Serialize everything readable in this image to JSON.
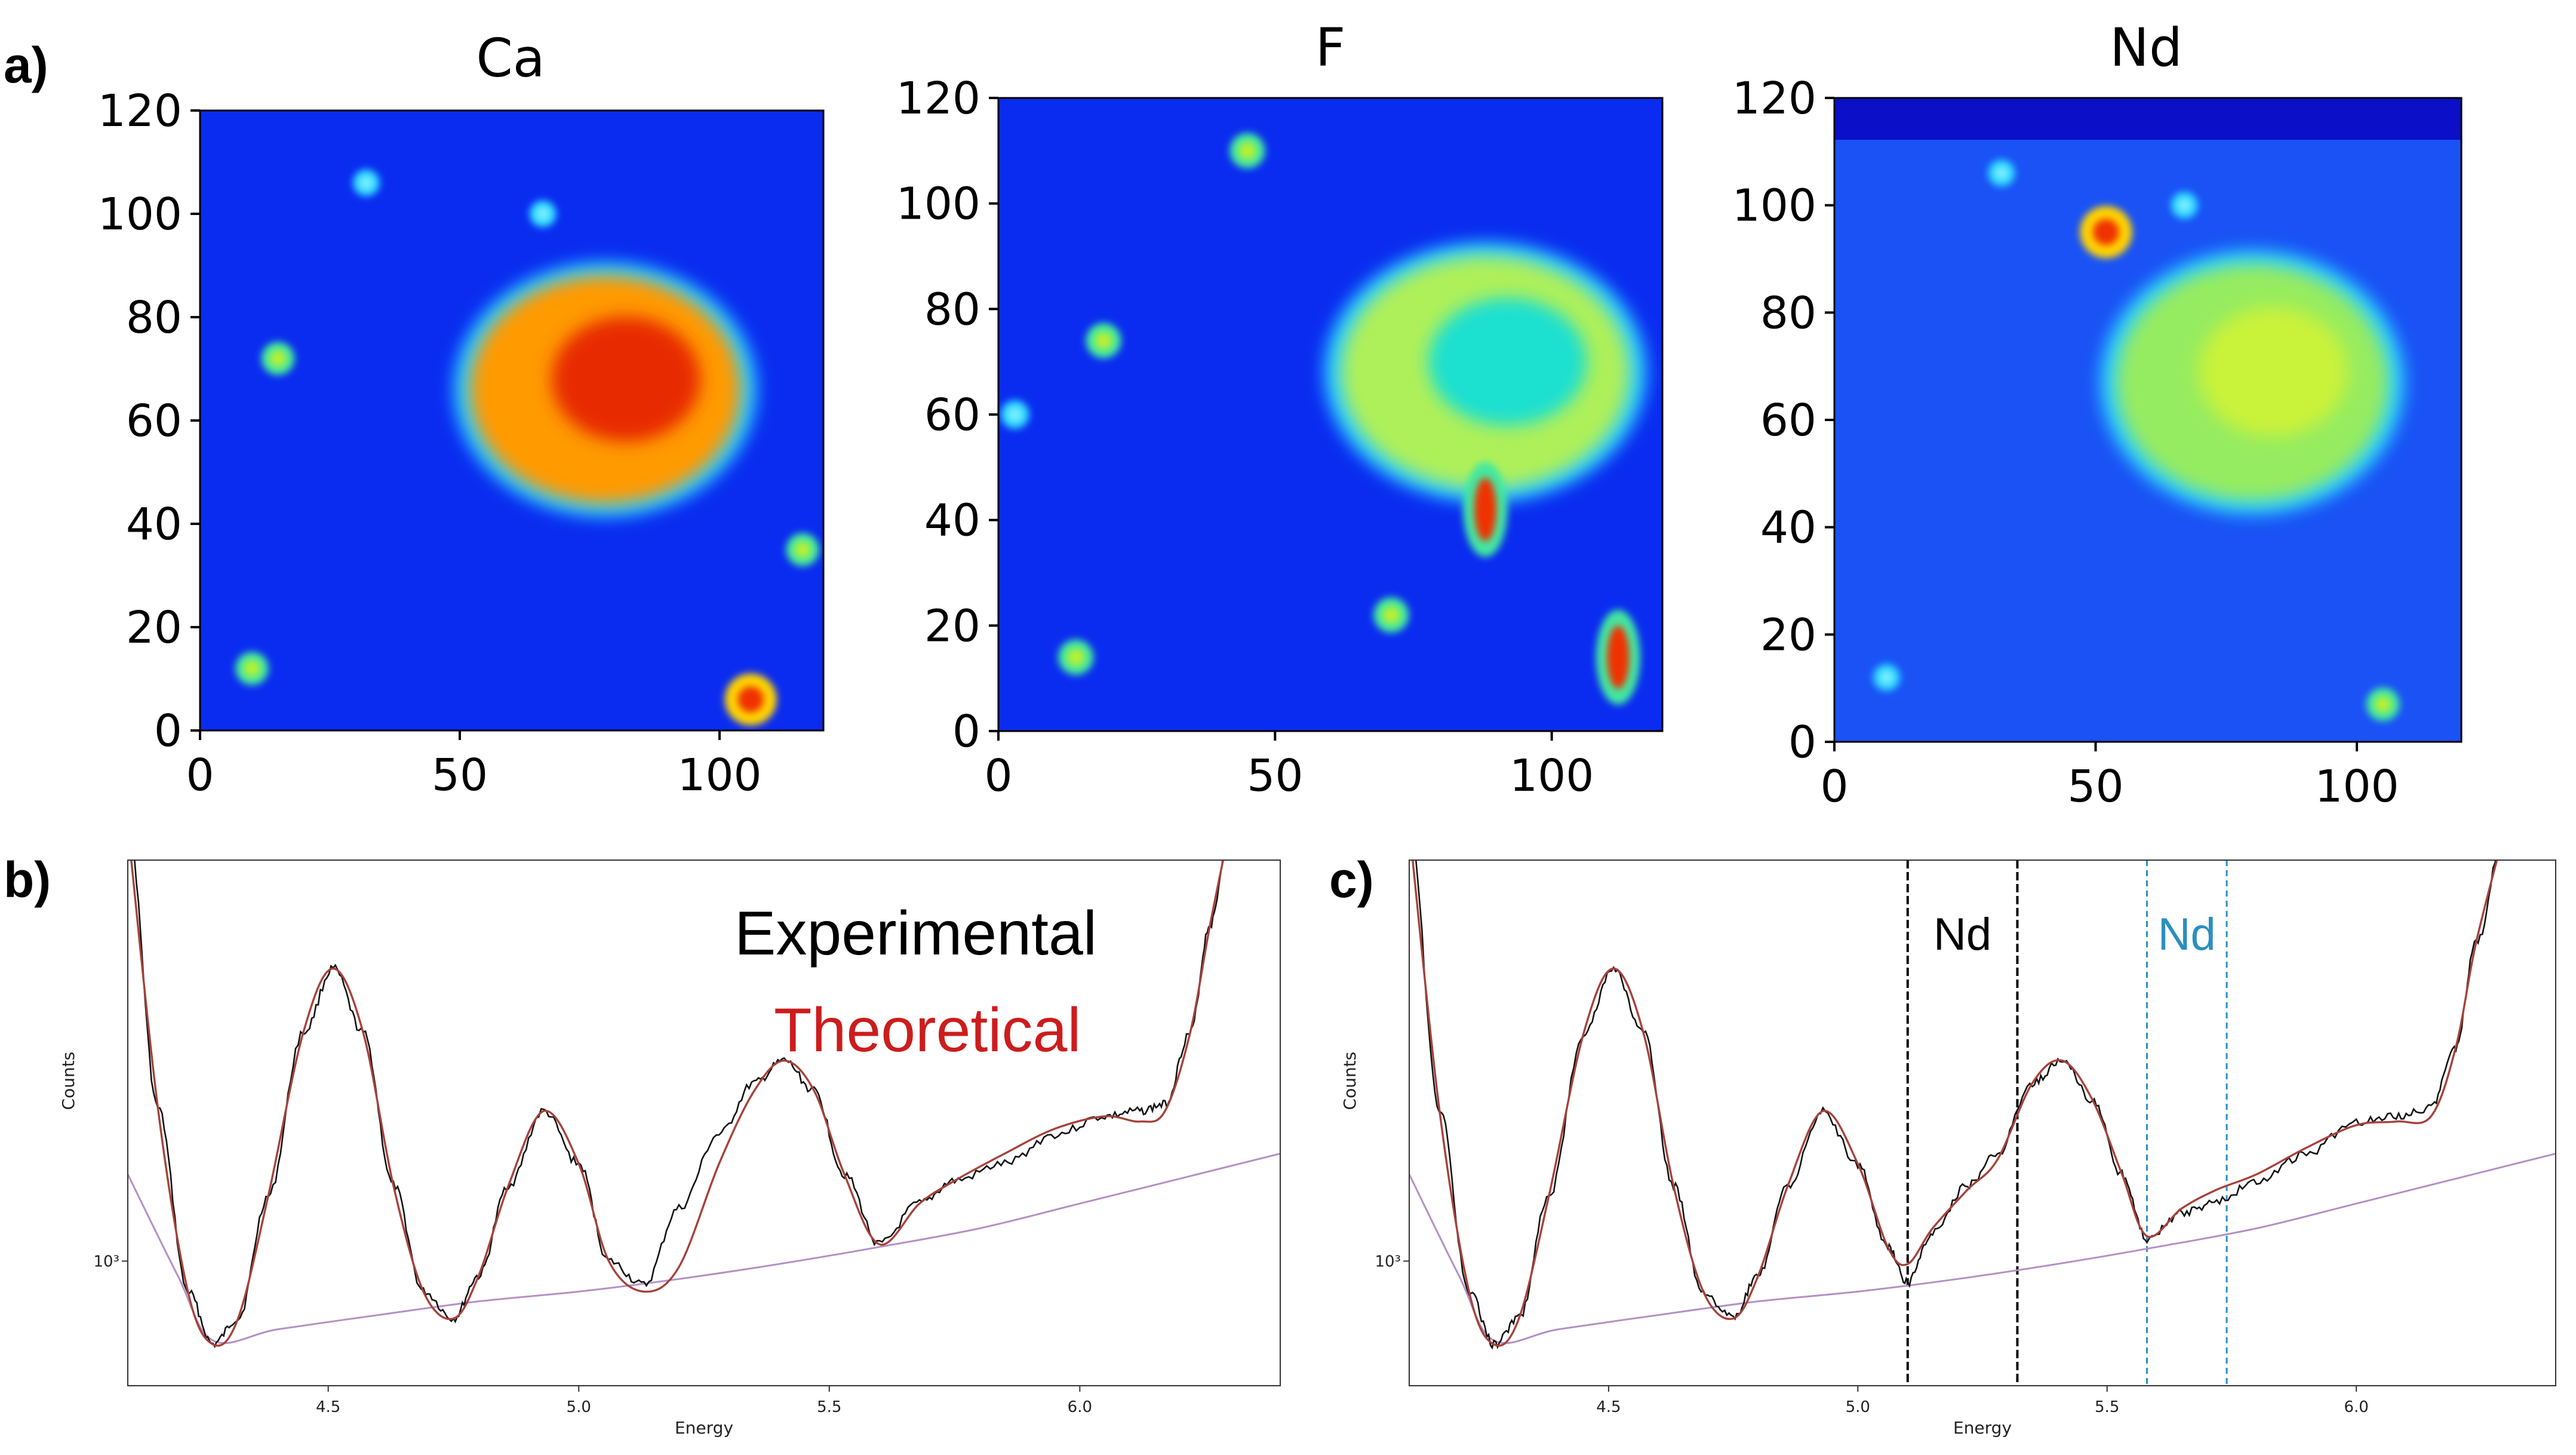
{
  "panel_labels": {
    "a": "a)",
    "b": "b)",
    "c": "c)"
  },
  "colors": {
    "experimental": "#111111",
    "theoretical": "#a5423a",
    "background_fit": "#b490c4",
    "nd_marker_black": "#000000",
    "nd_marker_blue": "#2b8fc0",
    "legend_theoretical": "#cc1d1d",
    "colormap": "jet"
  },
  "chart_data": [
    {
      "type": "heatmap",
      "title": "Ca",
      "colormap": "jet",
      "xlim": [
        0,
        120
      ],
      "ylim": [
        0,
        120
      ],
      "xticks": [
        "0",
        "50",
        "100"
      ],
      "yticks": [
        "0",
        "20",
        "40",
        "60",
        "80",
        "100",
        "120"
      ],
      "features": [
        {
          "kind": "hotspot",
          "x": 78,
          "y": 66,
          "intensity": "high"
        },
        {
          "kind": "spot",
          "x": 106,
          "y": 6,
          "intensity": "high"
        },
        {
          "kind": "spot",
          "x": 10,
          "y": 12,
          "intensity": "medium"
        },
        {
          "kind": "spot",
          "x": 15,
          "y": 72,
          "intensity": "medium"
        },
        {
          "kind": "spot",
          "x": 116,
          "y": 35,
          "intensity": "medium"
        },
        {
          "kind": "spot",
          "x": 32,
          "y": 106,
          "intensity": "low"
        },
        {
          "kind": "spot",
          "x": 66,
          "y": 100,
          "intensity": "low"
        }
      ]
    },
    {
      "type": "heatmap",
      "title": "F",
      "colormap": "jet",
      "xlim": [
        0,
        120
      ],
      "ylim": [
        0,
        120
      ],
      "xticks": [
        "0",
        "50",
        "100"
      ],
      "yticks": [
        "0",
        "20",
        "40",
        "60",
        "80",
        "100",
        "120"
      ],
      "features": [
        {
          "kind": "hotspot",
          "x": 88,
          "y": 68,
          "intensity": "medium"
        },
        {
          "kind": "streak",
          "x": 88,
          "y": 42,
          "intensity": "high"
        },
        {
          "kind": "streak",
          "x": 112,
          "y": 14,
          "intensity": "high"
        },
        {
          "kind": "spot",
          "x": 71,
          "y": 22,
          "intensity": "medium"
        },
        {
          "kind": "spot",
          "x": 45,
          "y": 110,
          "intensity": "medium"
        },
        {
          "kind": "spot",
          "x": 19,
          "y": 74,
          "intensity": "medium"
        },
        {
          "kind": "spot",
          "x": 14,
          "y": 14,
          "intensity": "medium"
        },
        {
          "kind": "spot",
          "x": 3,
          "y": 60,
          "intensity": "low"
        }
      ]
    },
    {
      "type": "heatmap",
      "title": "Nd",
      "colormap": "jet",
      "xlim": [
        0,
        120
      ],
      "ylim": [
        0,
        120
      ],
      "xticks": [
        "0",
        "50",
        "100"
      ],
      "yticks": [
        "0",
        "20",
        "40",
        "60",
        "80",
        "100",
        "120"
      ],
      "features": [
        {
          "kind": "hotspot",
          "x": 80,
          "y": 67,
          "intensity": "medium"
        },
        {
          "kind": "spot",
          "x": 105,
          "y": 7,
          "intensity": "medium"
        },
        {
          "kind": "spot",
          "x": 10,
          "y": 12,
          "intensity": "low"
        },
        {
          "kind": "spot",
          "x": 52,
          "y": 95,
          "intensity": "high"
        },
        {
          "kind": "spot",
          "x": 32,
          "y": 106,
          "intensity": "low"
        },
        {
          "kind": "spot",
          "x": 67,
          "y": 100,
          "intensity": "low"
        }
      ]
    },
    {
      "type": "line",
      "panel": "b",
      "xlabel": "Energy",
      "ylabel": "Counts",
      "ylog": true,
      "xlim": [
        4.1,
        6.4
      ],
      "ylim": [
        650,
        4000
      ],
      "xticks": [
        "4.5",
        "5.0",
        "5.5",
        "6.0"
      ],
      "ytick_label": "10³",
      "legend": [
        "Experimental",
        "Theoretical"
      ],
      "peaks": [
        {
          "energy": 4.51,
          "counts": 2750
        },
        {
          "energy": 4.93,
          "counts": 1680
        },
        {
          "energy": 5.41,
          "counts": 2000
        },
        {
          "energy": 6.05,
          "counts": 1650
        }
      ],
      "series": [
        {
          "name": "Experimental",
          "style": "noisy",
          "x": [
            4.1,
            4.16,
            4.22,
            4.27,
            4.32,
            4.38,
            4.45,
            4.51,
            4.57,
            4.63,
            4.69,
            4.75,
            4.8,
            4.86,
            4.93,
            5.0,
            5.06,
            5.13,
            5.2,
            5.28,
            5.35,
            5.41,
            5.47,
            5.53,
            5.6,
            5.68,
            5.75,
            5.85,
            5.95,
            6.05,
            6.12,
            6.17,
            6.22,
            6.26,
            6.3
          ],
          "y": [
            4500,
            1700,
            900,
            750,
            820,
            1250,
            2200,
            2750,
            2200,
            1300,
            900,
            820,
            950,
            1300,
            1680,
            1400,
            1000,
            920,
            1200,
            1550,
            1850,
            2000,
            1800,
            1350,
            1060,
            1220,
            1320,
            1400,
            1550,
            1650,
            1680,
            1720,
            2200,
            3200,
            4500
          ]
        },
        {
          "name": "Theoretical",
          "style": "smooth",
          "x": [
            4.1,
            4.16,
            4.22,
            4.27,
            4.32,
            4.38,
            4.45,
            4.51,
            4.57,
            4.63,
            4.69,
            4.75,
            4.8,
            4.86,
            4.93,
            5.0,
            5.06,
            5.13,
            5.2,
            5.28,
            5.35,
            5.41,
            5.47,
            5.53,
            5.6,
            5.68,
            5.75,
            5.85,
            5.95,
            6.05,
            6.12,
            6.17,
            6.22,
            6.26,
            6.3
          ],
          "y": [
            4500,
            1700,
            900,
            750,
            820,
            1250,
            2200,
            2750,
            2200,
            1300,
            900,
            820,
            950,
            1300,
            1680,
            1400,
            1000,
            900,
            980,
            1400,
            1800,
            2000,
            1800,
            1350,
            1060,
            1220,
            1320,
            1450,
            1580,
            1650,
            1620,
            1680,
            2200,
            3200,
            4500
          ]
        },
        {
          "name": "Background",
          "style": "baseline",
          "x": [
            4.1,
            4.2,
            4.27,
            4.4,
            4.6,
            4.8,
            5.0,
            5.2,
            5.4,
            5.6,
            5.8,
            6.0,
            6.2,
            6.4
          ],
          "y": [
            1350,
            950,
            760,
            790,
            830,
            870,
            900,
            940,
            990,
            1050,
            1120,
            1220,
            1330,
            1450
          ]
        }
      ]
    },
    {
      "type": "line",
      "panel": "c",
      "xlabel": "Energy",
      "ylabel": "Counts",
      "ylog": true,
      "xlim": [
        4.1,
        6.4
      ],
      "ylim": [
        650,
        4000
      ],
      "xticks": [
        "4.5",
        "5.0",
        "5.5",
        "6.0"
      ],
      "ytick_label": "10³",
      "markers": [
        {
          "label": "Nd",
          "color": "black",
          "x_range": [
            5.1,
            5.32
          ]
        },
        {
          "label": "Nd",
          "color": "blue",
          "x_range": [
            5.58,
            5.74
          ]
        }
      ],
      "series": [
        {
          "name": "Experimental",
          "style": "noisy",
          "x": [
            4.1,
            4.16,
            4.22,
            4.27,
            4.32,
            4.38,
            4.45,
            4.51,
            4.57,
            4.63,
            4.69,
            4.75,
            4.8,
            4.86,
            4.93,
            5.0,
            5.06,
            5.1,
            5.15,
            5.22,
            5.28,
            5.35,
            5.41,
            5.47,
            5.53,
            5.58,
            5.65,
            5.72,
            5.8,
            5.9,
            6.0,
            6.08,
            6.15,
            6.2,
            6.24,
            6.3
          ],
          "y": [
            4500,
            1700,
            900,
            750,
            820,
            1250,
            2200,
            2750,
            2200,
            1300,
            900,
            820,
            950,
            1300,
            1680,
            1400,
            1050,
            930,
            1100,
            1300,
            1450,
            1850,
            2000,
            1750,
            1350,
            1080,
            1180,
            1230,
            1320,
            1450,
            1620,
            1650,
            1700,
            2100,
            3000,
            4500
          ]
        },
        {
          "name": "Theoretical",
          "style": "smooth",
          "x": [
            4.1,
            4.16,
            4.22,
            4.27,
            4.32,
            4.38,
            4.45,
            4.51,
            4.57,
            4.63,
            4.69,
            4.75,
            4.8,
            4.86,
            4.93,
            5.0,
            5.06,
            5.1,
            5.15,
            5.22,
            5.28,
            5.35,
            5.41,
            5.47,
            5.53,
            5.58,
            5.65,
            5.72,
            5.8,
            5.9,
            6.0,
            6.08,
            6.15,
            6.2,
            6.24,
            6.3
          ],
          "y": [
            4500,
            1700,
            900,
            750,
            820,
            1250,
            2200,
            2750,
            2200,
            1300,
            900,
            820,
            950,
            1300,
            1680,
            1400,
            1050,
            990,
            1120,
            1280,
            1420,
            1850,
            2000,
            1750,
            1350,
            1090,
            1200,
            1280,
            1350,
            1480,
            1600,
            1620,
            1650,
            2100,
            3000,
            4500
          ]
        },
        {
          "name": "Background",
          "style": "baseline",
          "x": [
            4.1,
            4.2,
            4.27,
            4.4,
            4.6,
            4.8,
            5.0,
            5.2,
            5.4,
            5.6,
            5.8,
            6.0,
            6.2,
            6.4
          ],
          "y": [
            1350,
            950,
            760,
            790,
            830,
            870,
            900,
            940,
            990,
            1050,
            1120,
            1220,
            1330,
            1450
          ]
        }
      ]
    }
  ]
}
